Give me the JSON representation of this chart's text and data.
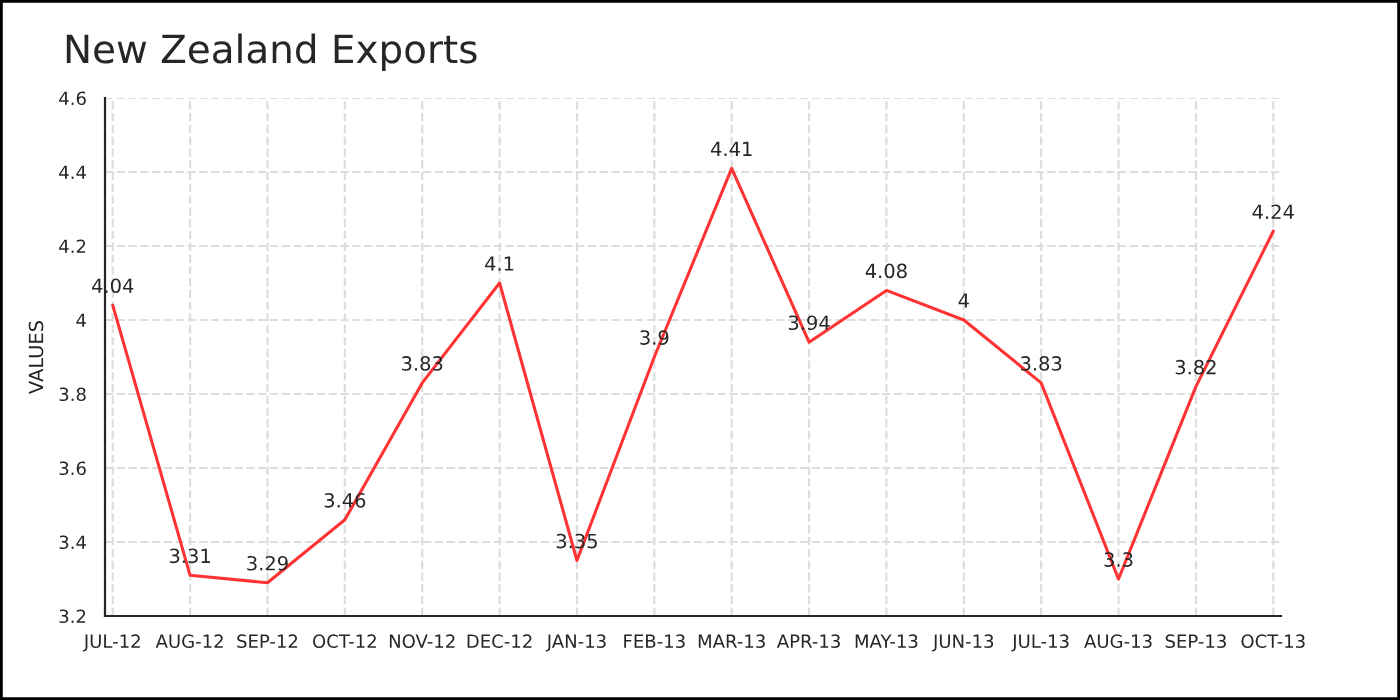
{
  "chart_data": {
    "type": "line",
    "title": "New Zealand Exports",
    "ylabel": "VALUES",
    "categories": [
      "JUL-12",
      "AUG-12",
      "SEP-12",
      "OCT-12",
      "NOV-12",
      "DEC-12",
      "JAN-13",
      "FEB-13",
      "MAR-13",
      "APR-13",
      "MAY-13",
      "JUN-13",
      "JUL-13",
      "AUG-13",
      "SEP-13",
      "OCT-13"
    ],
    "series": [
      {
        "color": "#ff3333",
        "values": [
          4.04,
          3.31,
          3.29,
          3.46,
          3.83,
          4.1,
          3.35,
          3.9,
          4.41,
          3.94,
          4.08,
          4,
          3.83,
          3.3,
          3.82,
          4.24
        ]
      }
    ],
    "ylim": [
      3.2,
      4.6
    ],
    "yticks": [
      3.2,
      3.4,
      3.6,
      3.8,
      4,
      4.2,
      4.4,
      4.6
    ],
    "grid": true,
    "data_labels": true,
    "marker": "none",
    "line_style": "solid"
  }
}
